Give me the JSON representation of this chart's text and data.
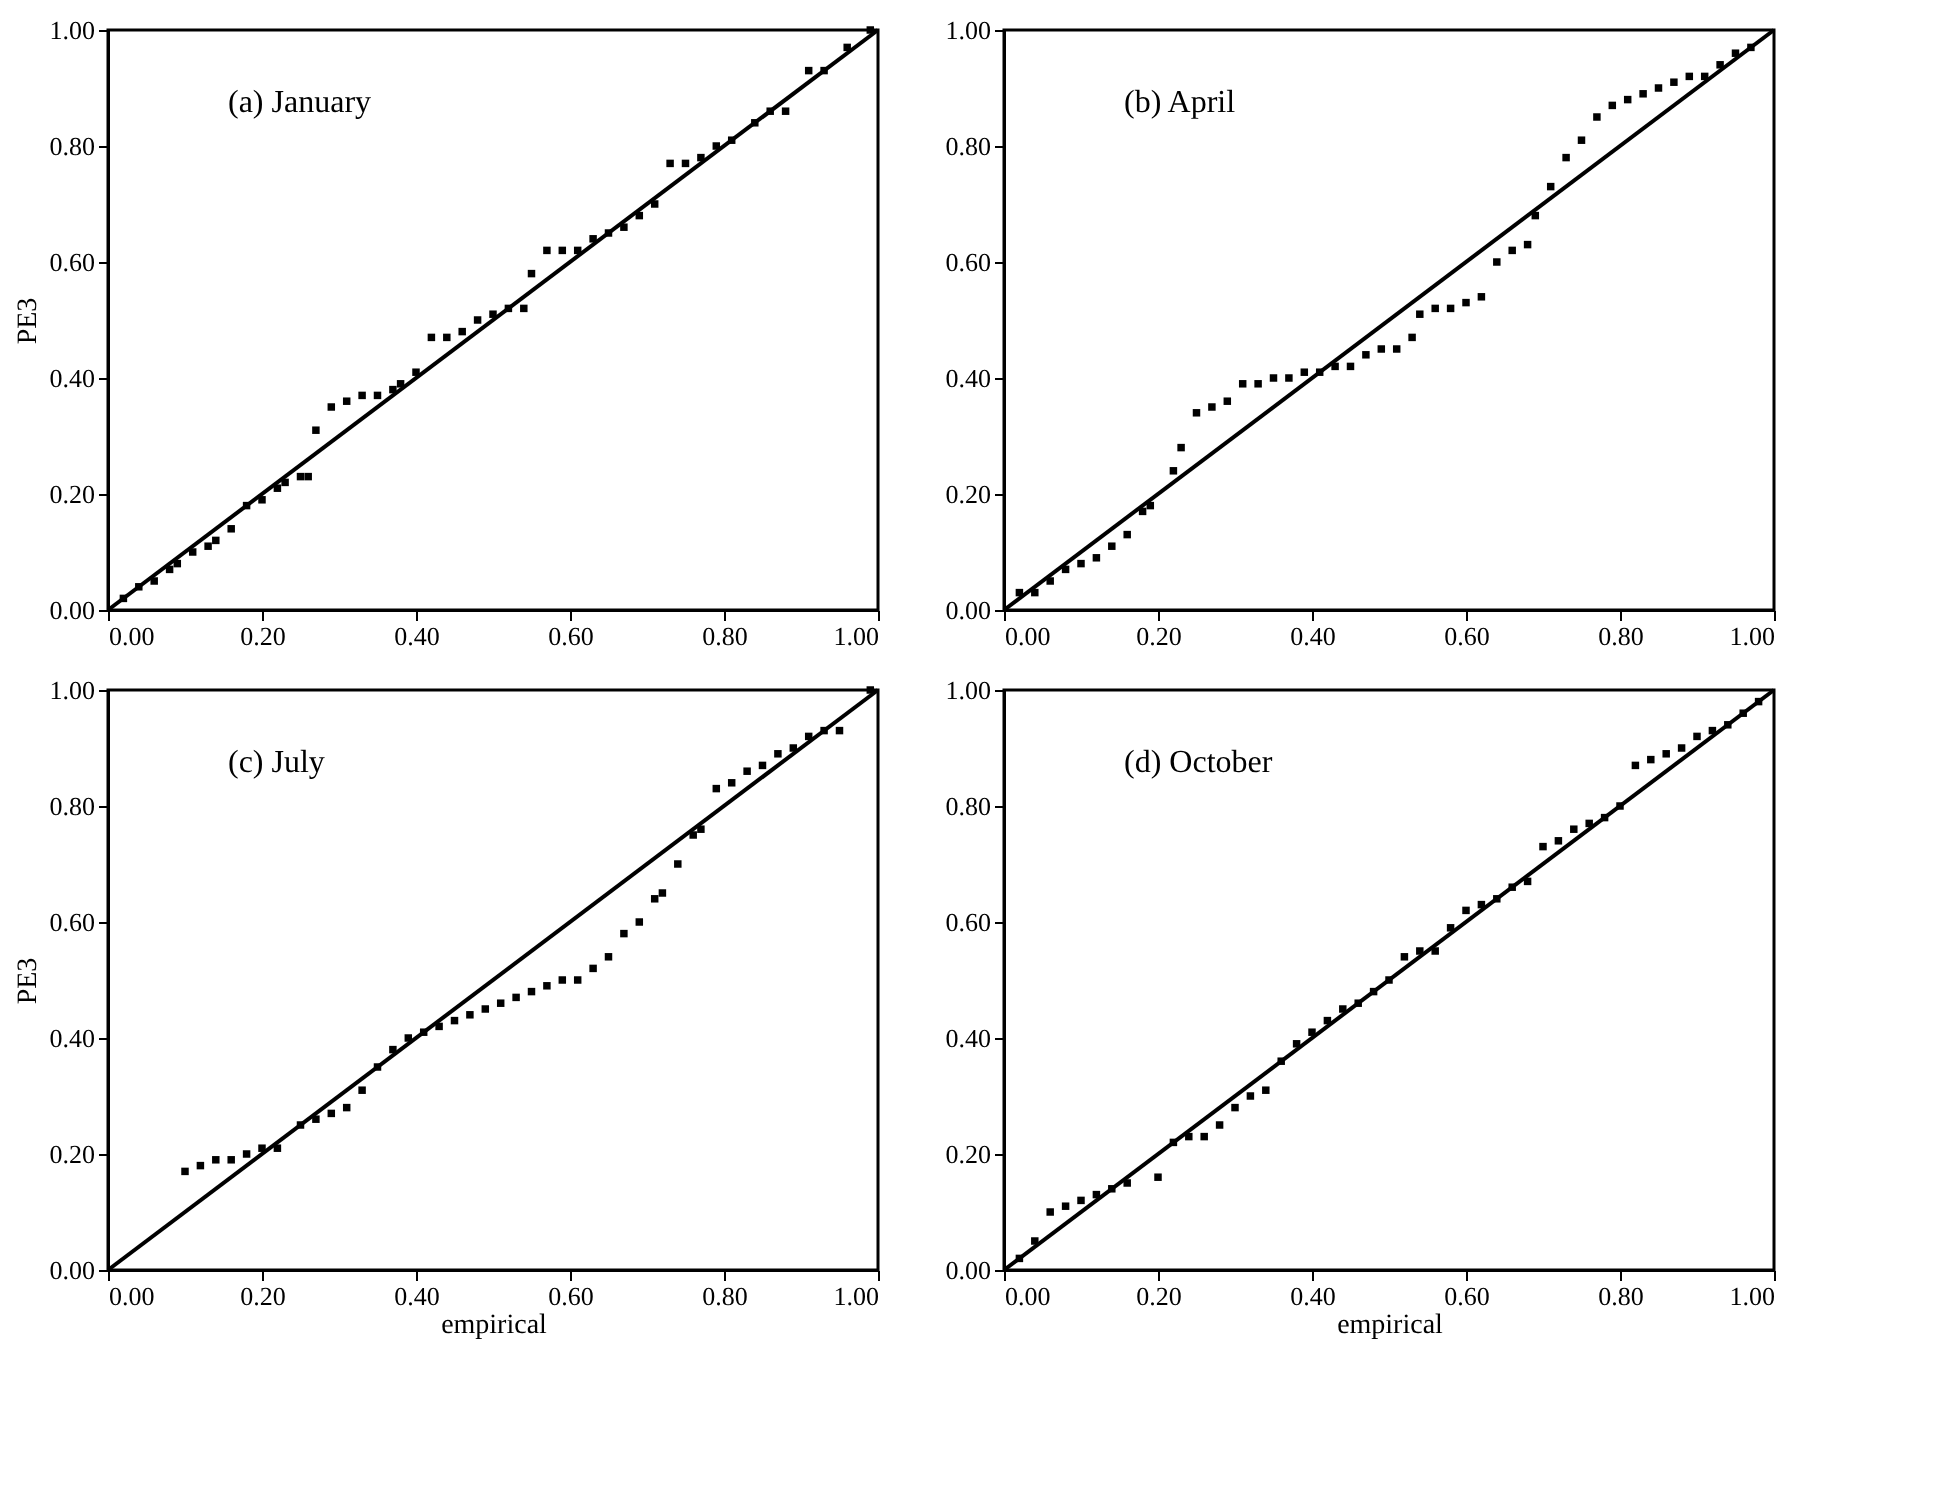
{
  "chart_data": [
    {
      "type": "scatter",
      "ylabel": "PE3",
      "annotations": [
        "(a) January"
      ],
      "xlim": [
        0,
        1
      ],
      "ylim": [
        0,
        1
      ],
      "marker": "square",
      "grid": false,
      "xticks": [
        {
          "value": 0,
          "label": "0.00"
        },
        {
          "value": 0.2,
          "label": "0.20"
        },
        {
          "value": 0.4,
          "label": "0.40"
        },
        {
          "value": 0.6,
          "label": "0.60"
        },
        {
          "value": 0.8,
          "label": "0.80"
        },
        {
          "value": 1,
          "label": "1.00"
        }
      ],
      "yticks": [
        {
          "value": 0,
          "label": "0.00"
        },
        {
          "value": 0.2,
          "label": "0.20"
        },
        {
          "value": 0.4,
          "label": "0.40"
        },
        {
          "value": 0.6,
          "label": "0.60"
        },
        {
          "value": 0.8,
          "label": "0.80"
        },
        {
          "value": 1,
          "label": "1.00"
        }
      ],
      "series": [
        {
          "color": "#000000",
          "x": [
            0.02,
            0.04,
            0.06,
            0.08,
            0.09,
            0.11,
            0.13,
            0.14,
            0.16,
            0.18,
            0.2,
            0.22,
            0.23,
            0.25,
            0.26,
            0.27,
            0.29,
            0.31,
            0.33,
            0.35,
            0.37,
            0.38,
            0.4,
            0.42,
            0.44,
            0.46,
            0.48,
            0.5,
            0.52,
            0.54,
            0.55,
            0.57,
            0.59,
            0.61,
            0.63,
            0.65,
            0.67,
            0.69,
            0.71,
            0.73,
            0.75,
            0.77,
            0.79,
            0.81,
            0.84,
            0.86,
            0.88,
            0.91,
            0.93,
            0.96,
            0.99
          ],
          "values": [
            0.02,
            0.04,
            0.05,
            0.07,
            0.08,
            0.1,
            0.11,
            0.12,
            0.14,
            0.18,
            0.19,
            0.21,
            0.22,
            0.23,
            0.23,
            0.31,
            0.35,
            0.36,
            0.37,
            0.37,
            0.38,
            0.39,
            0.41,
            0.47,
            0.47,
            0.48,
            0.5,
            0.51,
            0.52,
            0.52,
            0.58,
            0.62,
            0.62,
            0.62,
            0.64,
            0.65,
            0.66,
            0.68,
            0.7,
            0.77,
            0.77,
            0.78,
            0.8,
            0.81,
            0.84,
            0.86,
            0.86,
            0.93,
            0.93,
            0.97,
            1.0
          ]
        },
        {
          "type": "line",
          "color": "#000000",
          "marker": "none",
          "x": [
            0,
            1
          ],
          "values": [
            0,
            1
          ]
        }
      ]
    },
    {
      "type": "scatter",
      "annotations": [
        "(b) April"
      ],
      "xlim": [
        0,
        1
      ],
      "ylim": [
        0,
        1
      ],
      "marker": "square",
      "grid": false,
      "xticks": [
        {
          "value": 0,
          "label": "0.00"
        },
        {
          "value": 0.2,
          "label": "0.20"
        },
        {
          "value": 0.4,
          "label": "0.40"
        },
        {
          "value": 0.6,
          "label": "0.60"
        },
        {
          "value": 0.8,
          "label": "0.80"
        },
        {
          "value": 1,
          "label": "1.00"
        }
      ],
      "yticks": [
        {
          "value": 0,
          "label": "0.00"
        },
        {
          "value": 0.2,
          "label": "0.20"
        },
        {
          "value": 0.4,
          "label": "0.40"
        },
        {
          "value": 0.6,
          "label": "0.60"
        },
        {
          "value": 0.8,
          "label": "0.80"
        },
        {
          "value": 1,
          "label": "1.00"
        }
      ],
      "series": [
        {
          "color": "#000000",
          "x": [
            0.02,
            0.04,
            0.06,
            0.08,
            0.1,
            0.12,
            0.14,
            0.16,
            0.18,
            0.19,
            0.22,
            0.23,
            0.25,
            0.27,
            0.29,
            0.31,
            0.33,
            0.35,
            0.37,
            0.39,
            0.41,
            0.43,
            0.45,
            0.47,
            0.49,
            0.51,
            0.53,
            0.54,
            0.56,
            0.58,
            0.6,
            0.62,
            0.64,
            0.66,
            0.68,
            0.69,
            0.71,
            0.73,
            0.75,
            0.77,
            0.79,
            0.81,
            0.83,
            0.85,
            0.87,
            0.89,
            0.91,
            0.93,
            0.95,
            0.97
          ],
          "values": [
            0.03,
            0.03,
            0.05,
            0.07,
            0.08,
            0.09,
            0.11,
            0.13,
            0.17,
            0.18,
            0.24,
            0.28,
            0.34,
            0.35,
            0.36,
            0.39,
            0.39,
            0.4,
            0.4,
            0.41,
            0.41,
            0.42,
            0.42,
            0.44,
            0.45,
            0.45,
            0.47,
            0.51,
            0.52,
            0.52,
            0.53,
            0.54,
            0.6,
            0.62,
            0.63,
            0.68,
            0.73,
            0.78,
            0.81,
            0.85,
            0.87,
            0.88,
            0.89,
            0.9,
            0.91,
            0.92,
            0.92,
            0.94,
            0.96,
            0.97
          ]
        },
        {
          "type": "line",
          "color": "#000000",
          "marker": "none",
          "x": [
            0,
            1
          ],
          "values": [
            0,
            1
          ]
        }
      ]
    },
    {
      "type": "scatter",
      "xlabel": "empirical",
      "ylabel": "PE3",
      "annotations": [
        "(c) July"
      ],
      "xlim": [
        0,
        1
      ],
      "ylim": [
        0,
        1
      ],
      "marker": "square",
      "grid": false,
      "xticks": [
        {
          "value": 0,
          "label": "0.00"
        },
        {
          "value": 0.2,
          "label": "0.20"
        },
        {
          "value": 0.4,
          "label": "0.40"
        },
        {
          "value": 0.6,
          "label": "0.60"
        },
        {
          "value": 0.8,
          "label": "0.80"
        },
        {
          "value": 1,
          "label": "1.00"
        }
      ],
      "yticks": [
        {
          "value": 0,
          "label": "0.00"
        },
        {
          "value": 0.2,
          "label": "0.20"
        },
        {
          "value": 0.4,
          "label": "0.40"
        },
        {
          "value": 0.6,
          "label": "0.60"
        },
        {
          "value": 0.8,
          "label": "0.80"
        },
        {
          "value": 1,
          "label": "1.00"
        }
      ],
      "series": [
        {
          "color": "#000000",
          "x": [
            0.1,
            0.12,
            0.14,
            0.16,
            0.18,
            0.2,
            0.22,
            0.25,
            0.27,
            0.29,
            0.31,
            0.33,
            0.35,
            0.37,
            0.39,
            0.41,
            0.43,
            0.45,
            0.47,
            0.49,
            0.51,
            0.53,
            0.55,
            0.57,
            0.59,
            0.61,
            0.63,
            0.65,
            0.67,
            0.69,
            0.71,
            0.72,
            0.74,
            0.76,
            0.77,
            0.79,
            0.81,
            0.83,
            0.85,
            0.87,
            0.89,
            0.91,
            0.93,
            0.95,
            0.99
          ],
          "values": [
            0.17,
            0.18,
            0.19,
            0.19,
            0.2,
            0.21,
            0.21,
            0.25,
            0.26,
            0.27,
            0.28,
            0.31,
            0.35,
            0.38,
            0.4,
            0.41,
            0.42,
            0.43,
            0.44,
            0.45,
            0.46,
            0.47,
            0.48,
            0.49,
            0.5,
            0.5,
            0.52,
            0.54,
            0.58,
            0.6,
            0.64,
            0.65,
            0.7,
            0.75,
            0.76,
            0.83,
            0.84,
            0.86,
            0.87,
            0.89,
            0.9,
            0.92,
            0.93,
            0.93,
            1.0
          ]
        },
        {
          "type": "line",
          "color": "#000000",
          "marker": "none",
          "x": [
            0,
            1
          ],
          "values": [
            0,
            1
          ]
        }
      ]
    },
    {
      "type": "scatter",
      "xlabel": "empirical",
      "annotations": [
        "(d) October"
      ],
      "xlim": [
        0,
        1
      ],
      "ylim": [
        0,
        1
      ],
      "marker": "square",
      "grid": false,
      "xticks": [
        {
          "value": 0,
          "label": "0.00"
        },
        {
          "value": 0.2,
          "label": "0.20"
        },
        {
          "value": 0.4,
          "label": "0.40"
        },
        {
          "value": 0.6,
          "label": "0.60"
        },
        {
          "value": 0.8,
          "label": "0.80"
        },
        {
          "value": 1,
          "label": "1.00"
        }
      ],
      "yticks": [
        {
          "value": 0,
          "label": "0.00"
        },
        {
          "value": 0.2,
          "label": "0.20"
        },
        {
          "value": 0.4,
          "label": "0.40"
        },
        {
          "value": 0.6,
          "label": "0.60"
        },
        {
          "value": 0.8,
          "label": "0.80"
        },
        {
          "value": 1,
          "label": "1.00"
        }
      ],
      "series": [
        {
          "color": "#000000",
          "x": [
            0.02,
            0.04,
            0.06,
            0.08,
            0.1,
            0.12,
            0.14,
            0.16,
            0.2,
            0.22,
            0.24,
            0.26,
            0.28,
            0.3,
            0.32,
            0.34,
            0.36,
            0.38,
            0.4,
            0.42,
            0.44,
            0.46,
            0.48,
            0.5,
            0.52,
            0.54,
            0.56,
            0.58,
            0.6,
            0.62,
            0.64,
            0.66,
            0.68,
            0.7,
            0.72,
            0.74,
            0.76,
            0.78,
            0.8,
            0.82,
            0.84,
            0.86,
            0.88,
            0.9,
            0.92,
            0.94,
            0.96,
            0.98
          ],
          "values": [
            0.02,
            0.05,
            0.1,
            0.11,
            0.12,
            0.13,
            0.14,
            0.15,
            0.16,
            0.22,
            0.23,
            0.23,
            0.25,
            0.28,
            0.3,
            0.31,
            0.36,
            0.39,
            0.41,
            0.43,
            0.45,
            0.46,
            0.48,
            0.5,
            0.54,
            0.55,
            0.55,
            0.59,
            0.62,
            0.63,
            0.64,
            0.66,
            0.67,
            0.73,
            0.74,
            0.76,
            0.77,
            0.78,
            0.8,
            0.87,
            0.88,
            0.89,
            0.9,
            0.92,
            0.93,
            0.94,
            0.96,
            0.98
          ]
        },
        {
          "type": "line",
          "color": "#000000",
          "marker": "none",
          "x": [
            0,
            1
          ],
          "values": [
            0,
            1
          ]
        }
      ]
    }
  ]
}
